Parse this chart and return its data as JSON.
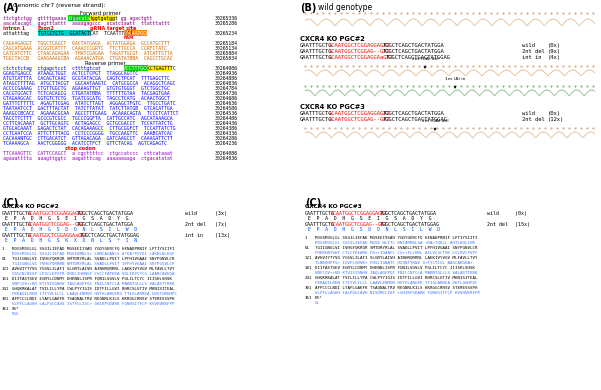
{
  "bg_color": "#ffffff",
  "fig_width": 6.01,
  "fig_height": 3.9,
  "dpi": 100
}
